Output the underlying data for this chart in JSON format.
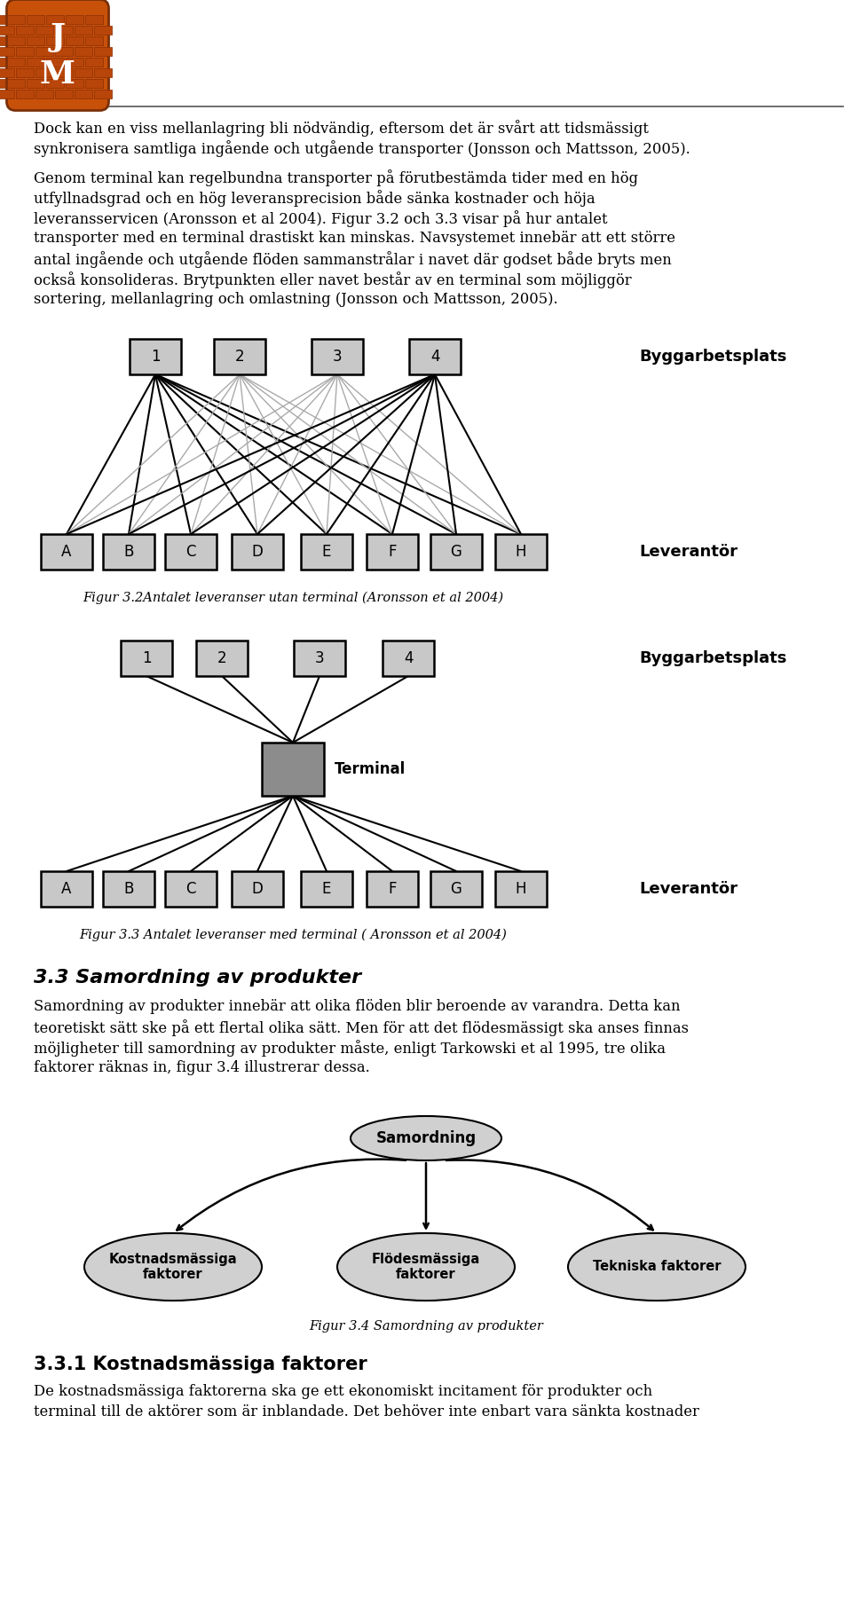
{
  "bg_color": "#ffffff",
  "page_width": 9.6,
  "page_height": 18.17,
  "para1_lines": [
    "Dock kan en viss mellanlagring bli nödvändig, eftersom det är svårt att tidsmässigt",
    "synkronisera samtliga ingående och utgående transporter (Jonsson och Mattsson, 2005)."
  ],
  "para2_lines": [
    "Genom terminal kan regelbundna transporter på förutbestämda tider med en hög",
    "utfyllnadsgrad och en hög leveransprecision både sänka kostnader och höja",
    "leveransservicen (Aronsson et al 2004). Figur 3.2 och 3.3 visar på hur antalet",
    "transporter med en terminal drastiskt kan minskas. Navsystemet innebär att ett större",
    "antal ingående och utgående flöden sammanstrålar i navet där godset både bryts men",
    "också konsolideras. Brytpunkten eller navet består av en terminal som möjliggör",
    "sortering, mellanlagring och omlastning (Jonsson och Mattsson, 2005)."
  ],
  "fig32_caption": "Figur 3.2Antalet leveranser utan terminal (Aronsson et al 2004)",
  "fig33_caption": "Figur 3.3 Antalet leveranser med terminal ( Aronsson et al 2004)",
  "byggarbetsplats_label": "Byggarbetsplats",
  "leverantor_label": "Leverantör",
  "terminal_label": "Terminal",
  "top_nodes": [
    "1",
    "2",
    "3",
    "4"
  ],
  "bottom_nodes": [
    "A",
    "B",
    "C",
    "D",
    "E",
    "F",
    "G",
    "H"
  ],
  "section_header": "3.3 Samordning av produkter",
  "section_para_lines": [
    "Samordning av produkter innebär att olika flöden blir beroende av varandra. Detta kan",
    "teoretiskt sätt ske på ett flertal olika sätt. Men för att det flödesmässigt ska anses finnas",
    "möjligheter till samordning av produkter måste, enligt Tarkowski et al 1995, tre olika",
    "faktorer räknas in, figur 3.4 illustrerar dessa."
  ],
  "samordning_label": "Samordning",
  "oval_labels": [
    "Kostnadsmässiga\nfaktorer",
    "Flödesmässiga\nfaktorer",
    "Tekniska faktorer"
  ],
  "fig34_caption": "Figur 3.4 Samordning av produkter",
  "section31_header": "3.3.1 Kostnadsmässiga faktorer",
  "section31_para_lines": [
    "De kostnadsmässiga faktorerna ska ge ett ekonomiskt incitament för produkter och",
    "terminal till de aktörer som är inblandade. Det behöver inte enbart vara sänkta kostnader"
  ],
  "node_box_color": "#c8c8c8",
  "node_box_edge": "#000000",
  "terminal_box_color": "#8c8c8c"
}
